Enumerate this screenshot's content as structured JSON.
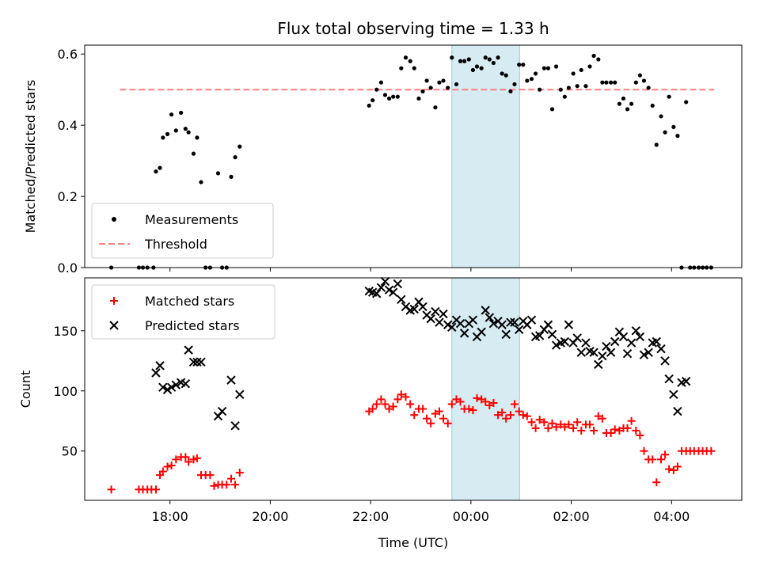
{
  "chart_data": [
    {
      "type": "scatter",
      "title": "Flux total observing time = 1.33 h",
      "ylabel": "Matched/Predicted stars",
      "xlabel": "",
      "ylim": [
        0,
        0.625
      ],
      "yticks": [
        0.0,
        0.2,
        0.4,
        0.6
      ],
      "ytick_labels": [
        "0.0",
        "0.2",
        "0.4",
        "0.6"
      ],
      "legend": {
        "position": "lower-left",
        "entries": [
          "Measurements",
          "Threshold"
        ]
      },
      "threshold": {
        "name": "Threshold",
        "value": 0.5,
        "x_start": 17.0,
        "x_end": 28.85,
        "color": "#ff7f7f"
      },
      "series": [
        {
          "name": "Measurements",
          "color": "#000000",
          "marker": "dot",
          "x": [
            16.83,
            17.38,
            17.46,
            17.55,
            17.67,
            17.72,
            17.8,
            17.86,
            17.95,
            18.03,
            18.12,
            18.22,
            18.31,
            18.37,
            18.47,
            18.54,
            18.62,
            18.71,
            18.8,
            18.96,
            19.04,
            19.13,
            19.22,
            19.3,
            19.39,
            21.97,
            22.04,
            22.12,
            22.21,
            22.29,
            22.37,
            22.45,
            22.54,
            22.61,
            22.7,
            22.79,
            22.87,
            22.96,
            23.04,
            23.12,
            23.2,
            23.29,
            23.37,
            23.45,
            23.54,
            23.62,
            23.71,
            23.79,
            23.87,
            23.96,
            24.04,
            24.12,
            24.21,
            24.29,
            24.37,
            24.45,
            24.54,
            24.62,
            24.7,
            24.79,
            24.87,
            24.96,
            25.04,
            25.12,
            25.21,
            25.29,
            25.37,
            25.46,
            25.54,
            25.62,
            25.7,
            25.79,
            25.87,
            25.95,
            26.04,
            26.12,
            26.2,
            26.29,
            26.37,
            26.45,
            26.54,
            26.62,
            26.7,
            26.79,
            26.87,
            26.96,
            27.04,
            27.12,
            27.2,
            27.29,
            27.37,
            27.45,
            27.54,
            27.62,
            27.7,
            27.79,
            27.87,
            27.95,
            28.04,
            28.12,
            28.2,
            28.29,
            28.37,
            28.45,
            28.54,
            28.62,
            28.7,
            28.79
          ],
          "y": [
            0.0,
            0.0,
            0.0,
            0.0,
            0.0,
            0.27,
            0.28,
            0.365,
            0.375,
            0.43,
            0.385,
            0.435,
            0.39,
            0.38,
            0.32,
            0.365,
            0.24,
            0.0,
            0.0,
            0.265,
            0.0,
            0.0,
            0.255,
            0.31,
            0.34,
            0.455,
            0.47,
            0.5,
            0.52,
            0.485,
            0.475,
            0.48,
            0.48,
            0.56,
            0.59,
            0.58,
            0.56,
            0.475,
            0.495,
            0.525,
            0.505,
            0.45,
            0.52,
            0.525,
            0.505,
            0.59,
            0.515,
            0.58,
            0.58,
            0.585,
            0.555,
            0.565,
            0.56,
            0.59,
            0.585,
            0.575,
            0.59,
            0.545,
            0.54,
            0.495,
            0.515,
            0.57,
            0.57,
            0.525,
            0.53,
            0.545,
            0.5,
            0.56,
            0.56,
            0.445,
            0.565,
            0.5,
            0.48,
            0.505,
            0.545,
            0.51,
            0.555,
            0.51,
            0.565,
            0.595,
            0.585,
            0.52,
            0.52,
            0.52,
            0.52,
            0.46,
            0.475,
            0.445,
            0.46,
            0.52,
            0.54,
            0.525,
            0.505,
            0.455,
            0.345,
            0.425,
            0.38,
            0.48,
            0.395,
            0.37,
            0.0,
            0.465,
            0.0,
            0.0,
            0.0,
            0.0,
            0.0,
            0.0
          ]
        }
      ]
    },
    {
      "type": "scatter",
      "title": "",
      "ylabel": "Count",
      "xlabel": "Time (UTC)",
      "ylim": [
        9,
        194
      ],
      "yticks": [
        50,
        100,
        150
      ],
      "ytick_labels": [
        "50",
        "100",
        "150"
      ],
      "legend": {
        "position": "top-left",
        "entries": [
          "Matched stars",
          "Predicted stars"
        ]
      },
      "series": [
        {
          "name": "Matched stars",
          "color": "#ff0000",
          "marker": "plus",
          "x": [
            16.83,
            17.38,
            17.46,
            17.55,
            17.63,
            17.72,
            17.8,
            17.86,
            17.95,
            18.03,
            18.12,
            18.22,
            18.31,
            18.37,
            18.47,
            18.54,
            18.62,
            18.71,
            18.8,
            18.88,
            18.96,
            19.04,
            19.13,
            19.22,
            19.3,
            19.39,
            21.97,
            22.04,
            22.12,
            22.21,
            22.29,
            22.37,
            22.45,
            22.54,
            22.61,
            22.7,
            22.79,
            22.87,
            22.96,
            23.04,
            23.12,
            23.2,
            23.29,
            23.37,
            23.45,
            23.54,
            23.62,
            23.71,
            23.79,
            23.87,
            23.96,
            24.04,
            24.12,
            24.21,
            24.29,
            24.37,
            24.45,
            24.54,
            24.62,
            24.7,
            24.79,
            24.87,
            24.96,
            25.04,
            25.12,
            25.21,
            25.29,
            25.37,
            25.46,
            25.54,
            25.62,
            25.7,
            25.79,
            25.87,
            25.95,
            26.04,
            26.12,
            26.2,
            26.29,
            26.37,
            26.45,
            26.54,
            26.62,
            26.7,
            26.79,
            26.87,
            26.96,
            27.04,
            27.12,
            27.2,
            27.29,
            27.37,
            27.45,
            27.54,
            27.62,
            27.7,
            27.79,
            27.87,
            27.95,
            28.04,
            28.12,
            28.2,
            28.29,
            28.37,
            28.45,
            28.54,
            28.62,
            28.7,
            28.79
          ],
          "y": [
            18,
            18,
            18,
            18,
            18,
            18,
            30,
            33,
            37,
            38,
            43,
            45,
            45,
            41,
            43,
            44,
            30,
            30,
            30,
            21,
            22,
            22,
            22,
            27,
            22,
            32,
            83,
            85,
            89,
            93,
            89,
            85,
            87,
            93,
            97,
            95,
            89,
            80,
            85,
            85,
            77,
            73,
            81,
            83,
            77,
            73,
            89,
            93,
            91,
            85,
            85,
            84,
            94,
            93,
            91,
            88,
            90,
            80,
            82,
            77,
            80,
            89,
            83,
            80,
            79,
            74,
            69,
            76,
            74,
            69,
            73,
            70,
            72,
            70,
            72,
            69,
            74,
            67,
            72,
            72,
            67,
            79,
            77,
            65,
            65,
            68,
            67,
            69,
            69,
            75,
            67,
            63,
            50,
            43,
            43,
            24,
            43,
            47,
            35,
            34,
            37,
            50,
            50,
            50,
            50,
            50,
            50,
            50,
            50
          ],
          "shown_count": 109
        },
        {
          "name": "Predicted stars",
          "color": "#000000",
          "marker": "x",
          "x": [
            17.72,
            17.8,
            17.86,
            17.95,
            18.03,
            18.12,
            18.22,
            18.31,
            18.37,
            18.47,
            18.54,
            18.62,
            18.96,
            19.04,
            19.22,
            19.3,
            19.39,
            21.97,
            22.04,
            22.12,
            22.21,
            22.29,
            22.37,
            22.45,
            22.54,
            22.61,
            22.7,
            22.79,
            22.87,
            22.96,
            23.04,
            23.12,
            23.2,
            23.29,
            23.37,
            23.45,
            23.54,
            23.62,
            23.71,
            23.79,
            23.87,
            23.96,
            24.04,
            24.12,
            24.21,
            24.29,
            24.37,
            24.45,
            24.54,
            24.62,
            24.7,
            24.79,
            24.87,
            24.96,
            25.04,
            25.12,
            25.21,
            25.29,
            25.37,
            25.46,
            25.54,
            25.62,
            25.7,
            25.79,
            25.87,
            25.95,
            26.04,
            26.12,
            26.2,
            26.29,
            26.37,
            26.45,
            26.54,
            26.62,
            26.7,
            26.79,
            26.87,
            26.96,
            27.04,
            27.12,
            27.2,
            27.29,
            27.37,
            27.45,
            27.54,
            27.62,
            27.7,
            27.79,
            27.87,
            27.95,
            28.04,
            28.12,
            28.2,
            28.29
          ],
          "y": [
            115,
            121,
            103,
            101,
            103,
            105,
            107,
            106,
            134,
            124,
            124,
            124,
            79,
            83,
            109,
            71,
            97,
            183,
            182,
            181,
            186,
            191,
            184,
            182,
            189,
            176,
            170,
            167,
            168,
            174,
            170,
            163,
            160,
            166,
            157,
            164,
            155,
            153,
            159,
            156,
            148,
            156,
            159,
            145,
            149,
            167,
            161,
            156,
            158,
            155,
            147,
            157,
            157,
            151,
            158,
            155,
            159,
            145,
            146,
            151,
            155,
            147,
            138,
            140,
            141,
            155,
            140,
            144,
            132,
            140,
            133,
            132,
            122,
            129,
            137,
            132,
            141,
            149,
            145,
            131,
            140,
            150,
            145,
            130,
            132,
            140,
            141,
            135,
            125,
            110,
            97,
            83,
            107,
            108
          ]
        }
      ]
    }
  ],
  "x_axis": {
    "range": [
      16.3,
      29.4
    ],
    "ticks": [
      18,
      20,
      22,
      24,
      26,
      28
    ],
    "tick_labels": [
      "18:00",
      "20:00",
      "22:00",
      "00:00",
      "02:00",
      "04:00"
    ],
    "label": "Time (UTC)",
    "unit": "hours UTC (values beyond 24 fall on the following day)"
  },
  "highlight_span": {
    "x_start": 23.62,
    "x_end": 24.97,
    "color": "#add8e6"
  }
}
